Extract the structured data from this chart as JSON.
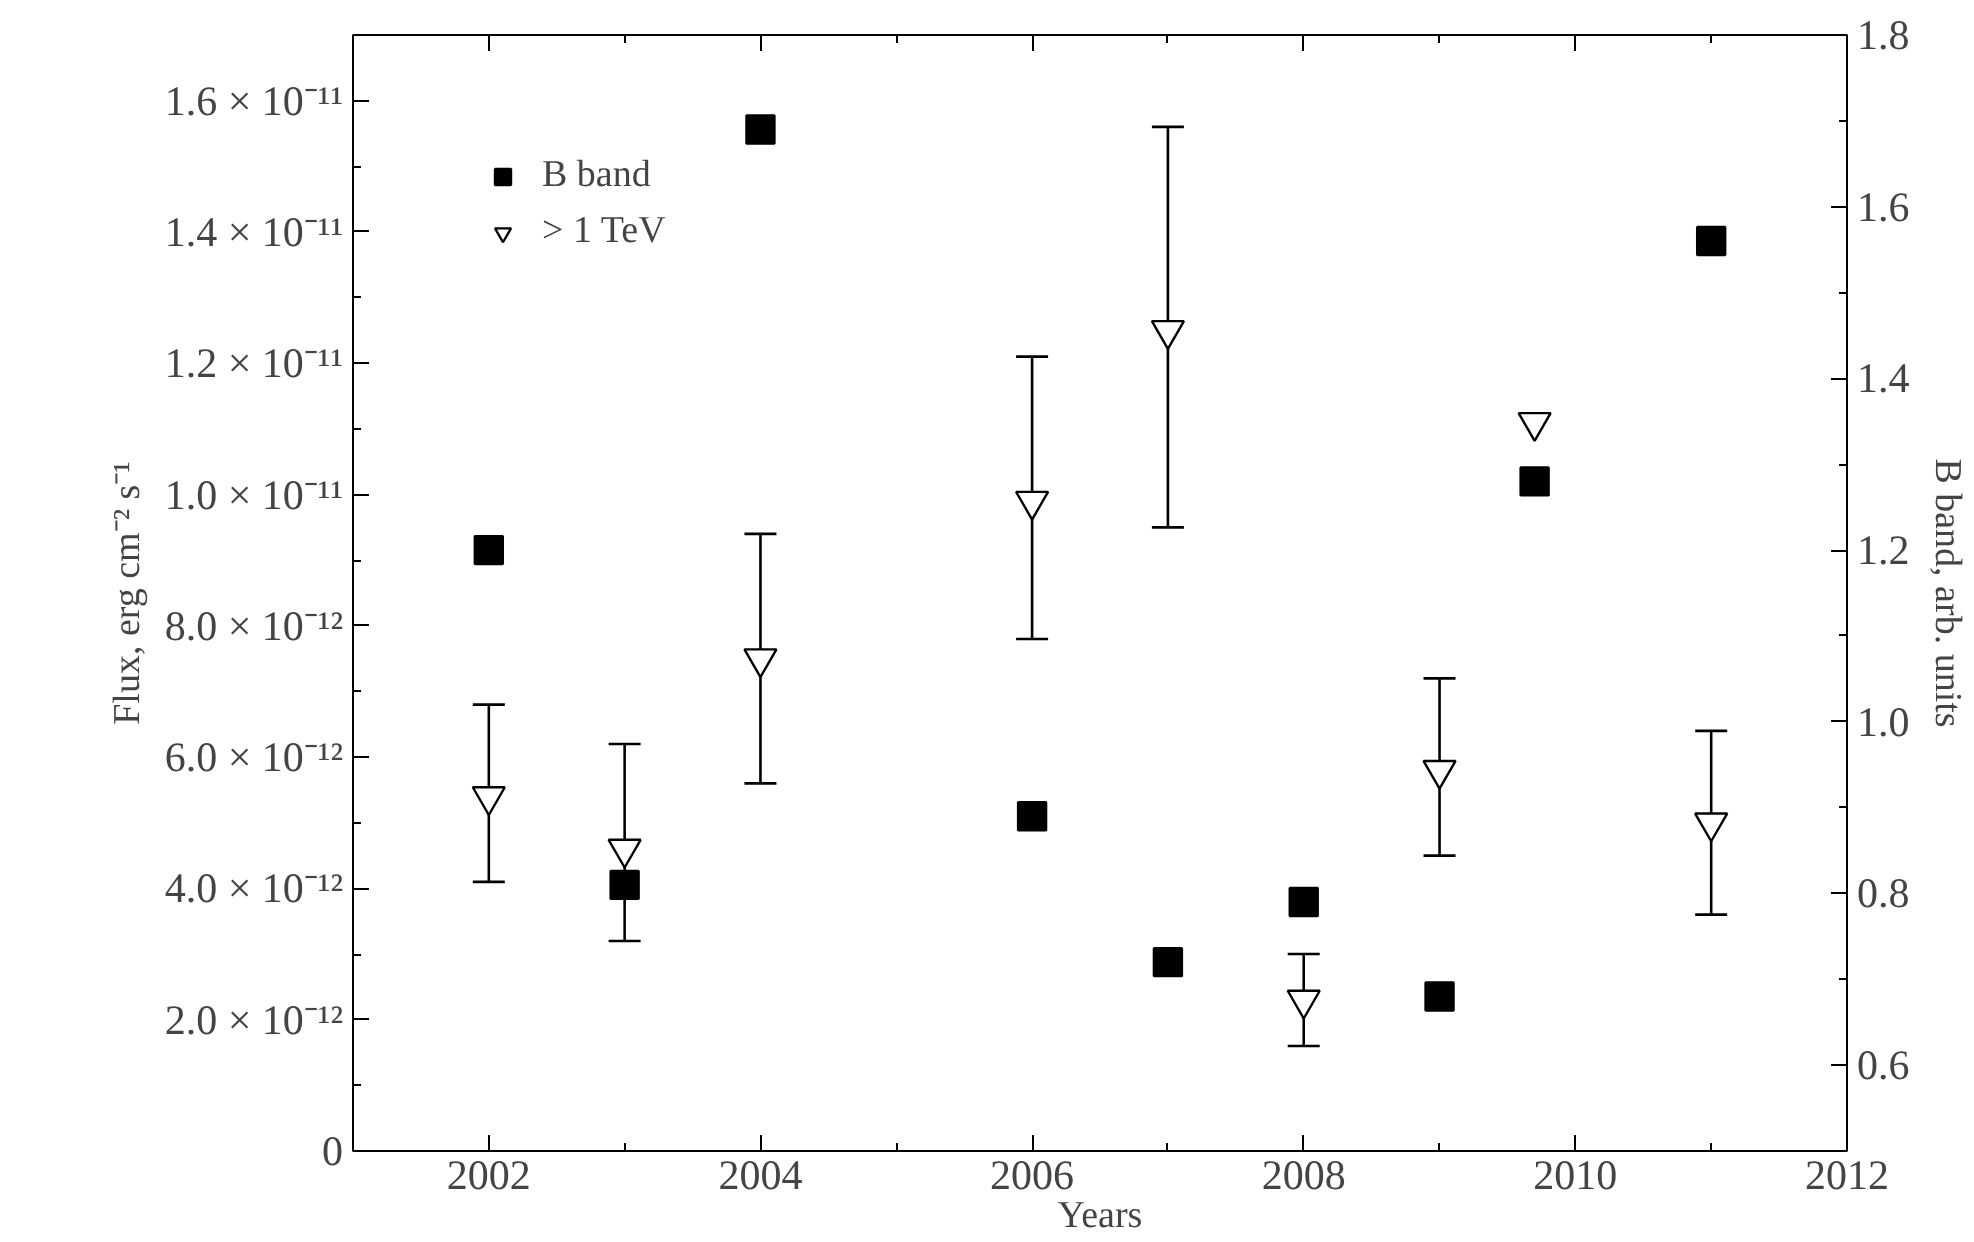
{
  "chart_data": {
    "type": "scatter",
    "xlabel": "Years",
    "ylabel": "Flux, erg cm⁻² s⁻¹",
    "y2label": "B band, arb. units",
    "xlim": [
      2001,
      2012
    ],
    "xticks": [
      2002,
      2004,
      2006,
      2008,
      2010,
      2012
    ],
    "ylim": [
      0,
      1.7e-11
    ],
    "yticks": [
      {
        "value": 0,
        "label": "0"
      },
      {
        "value": 2e-12,
        "label": "2.0 × 10⁻¹²"
      },
      {
        "value": 4e-12,
        "label": "4.0 × 10⁻¹²"
      },
      {
        "value": 6e-12,
        "label": "6.0 × 10⁻¹²"
      },
      {
        "value": 8e-12,
        "label": "8.0 × 10⁻¹²"
      },
      {
        "value": 1e-11,
        "label": "1.0 × 10⁻¹¹"
      },
      {
        "value": 1.2e-11,
        "label": "1.2 × 10⁻¹¹"
      },
      {
        "value": 1.4e-11,
        "label": "1.4 × 10⁻¹¹"
      },
      {
        "value": 1.6e-11,
        "label": "1.6 × 10⁻¹¹"
      }
    ],
    "y2lim": [
      0.5,
      1.8
    ],
    "y2ticks": [
      {
        "value": 0.6,
        "label": "0.6"
      },
      {
        "value": 0.8,
        "label": "0.8"
      },
      {
        "value": 1.0,
        "label": "1.0"
      },
      {
        "value": 1.2,
        "label": "1.2"
      },
      {
        "value": 1.4,
        "label": "1.4"
      },
      {
        "value": 1.6,
        "label": "1.6"
      },
      {
        "value": 1.8,
        "label": "1.8"
      }
    ],
    "grid": false,
    "legend": "top left",
    "series": [
      {
        "name": "B band",
        "color": "#000000",
        "marker": "square",
        "axis": "y2",
        "x": [
          2002,
          2003,
          2004,
          2006,
          2007,
          2008,
          2009,
          2009.7,
          2011
        ],
        "values": [
          1.2,
          0.81,
          1.69,
          0.89,
          0.72,
          0.79,
          0.68,
          1.28,
          1.56
        ]
      },
      {
        "name": "> 1 TeV",
        "color": "#000000",
        "marker": "triangle",
        "x": [
          2002,
          2003,
          2004,
          2006,
          2007,
          2008,
          2009,
          2009.7,
          2011
        ],
        "values": [
          5.4e-12,
          4.6e-12,
          7.5e-12,
          9.9e-12,
          1.25e-11,
          2.3e-12,
          5.8e-12,
          1.11e-11,
          5e-12
        ],
        "errors": [
          [
            4.1e-12,
            6.8e-12
          ],
          [
            3.2e-12,
            6.2e-12
          ],
          [
            5.6e-12,
            9.4e-12
          ],
          [
            7.8e-12,
            1.21e-11
          ],
          [
            9.5e-12,
            1.56e-11
          ],
          [
            1.6e-12,
            3e-12
          ],
          [
            4.5e-12,
            7.2e-12
          ],
          null,
          [
            3.6e-12,
            6.4e-12
          ]
        ]
      }
    ]
  }
}
